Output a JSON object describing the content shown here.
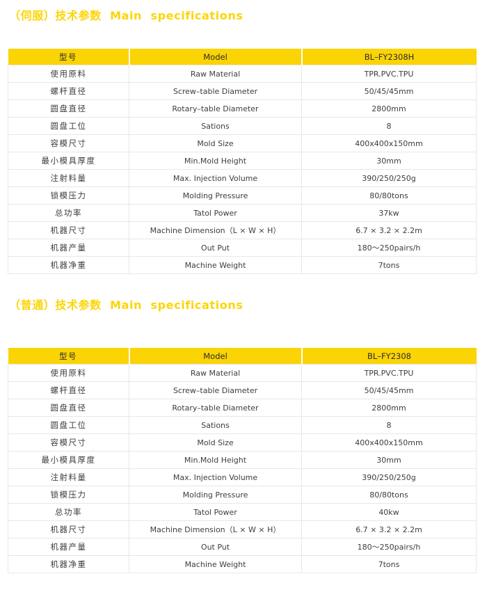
{
  "colors": {
    "title_yellow": "#FCD505",
    "header_yellow": "#FBD405",
    "row_text": "#3d3d3d",
    "divider_gray": "#e7e7e7",
    "background": "#ffffff"
  },
  "sections": [
    {
      "title": "（伺服）技术参数  Main  specifications",
      "header": {
        "model_zh": "型号",
        "model_en": "Model",
        "model_no": "BL–FY2308H"
      },
      "rows": [
        {
          "zh": "使用原料",
          "en": "Raw Material",
          "value": "TPR.PVC.TPU"
        },
        {
          "zh": "螺杆直径",
          "en": "Screw–table Diameter",
          "value": "50/45/45mm"
        },
        {
          "zh": "圆盘直径",
          "en": "Rotary–table Diameter",
          "value": "2800mm"
        },
        {
          "zh": "圆盘工位",
          "en": "Sations",
          "value": "8"
        },
        {
          "zh": "容模尺寸",
          "en": "Mold Size",
          "value": "400x400x150mm"
        },
        {
          "zh": "最小模具厚度",
          "en": "Min.Mold Height",
          "value": "30mm"
        },
        {
          "zh": "注射料量",
          "en": "Max. Injection Volume",
          "value": "390/250/250g"
        },
        {
          "zh": "锁模压力",
          "en": "Molding Pressure",
          "value": "80/80tons"
        },
        {
          "zh": "总功率",
          "en": "Tatol Power",
          "value": "37kw"
        },
        {
          "zh": "机器尺寸",
          "en": "Machine Dimension（L × W × H）",
          "value": "6.7 × 3.2 × 2.2m"
        },
        {
          "zh": "机器产量",
          "en": "Out Put",
          "value": "180～250pairs/h"
        },
        {
          "zh": "机器净重",
          "en": "Machine Weight",
          "value": "7tons"
        }
      ]
    },
    {
      "title": "（普通）技术参数  Main  specifications",
      "header": {
        "model_zh": "型号",
        "model_en": "Model",
        "model_no": "BL–FY2308"
      },
      "rows": [
        {
          "zh": "使用原料",
          "en": "Raw Material",
          "value": "TPR.PVC.TPU"
        },
        {
          "zh": "螺杆直径",
          "en": "Screw–table Diameter",
          "value": "50/45/45mm"
        },
        {
          "zh": "圆盘直径",
          "en": "Rotary–table Diameter",
          "value": "2800mm"
        },
        {
          "zh": "圆盘工位",
          "en": "Sations",
          "value": "8"
        },
        {
          "zh": "容模尺寸",
          "en": "Mold Size",
          "value": "400x400x150mm"
        },
        {
          "zh": "最小模具厚度",
          "en": "Min.Mold Height",
          "value": "30mm"
        },
        {
          "zh": "注射料量",
          "en": "Max. Injection Volume",
          "value": "390/250/250g"
        },
        {
          "zh": "锁模压力",
          "en": "Molding Pressure",
          "value": "80/80tons"
        },
        {
          "zh": "总功率",
          "en": "Tatol Power",
          "value": "40kw"
        },
        {
          "zh": "机器尺寸",
          "en": "Machine Dimension（L × W × H）",
          "value": "6.7 × 3.2 × 2.2m"
        },
        {
          "zh": "机器产量",
          "en": "Out Put",
          "value": "180～250pairs/h"
        },
        {
          "zh": "机器净重",
          "en": "Machine Weight",
          "value": "7tons"
        }
      ]
    }
  ]
}
